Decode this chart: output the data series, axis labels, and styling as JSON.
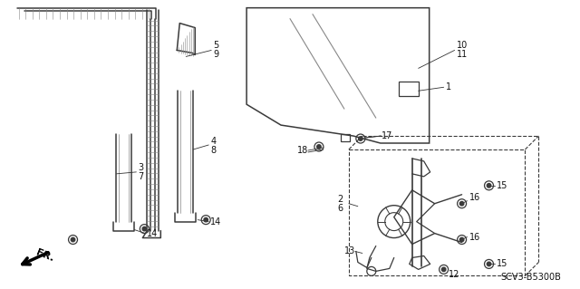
{
  "bg_color": "#ffffff",
  "diagram_code": "SCV3-B5300B",
  "gray": "#3a3a3a",
  "lgray": "#888888",
  "label_fontsize": 7.0,
  "lw_main": 1.1,
  "lw_hatch": 0.5,
  "lw_leader": 0.6
}
